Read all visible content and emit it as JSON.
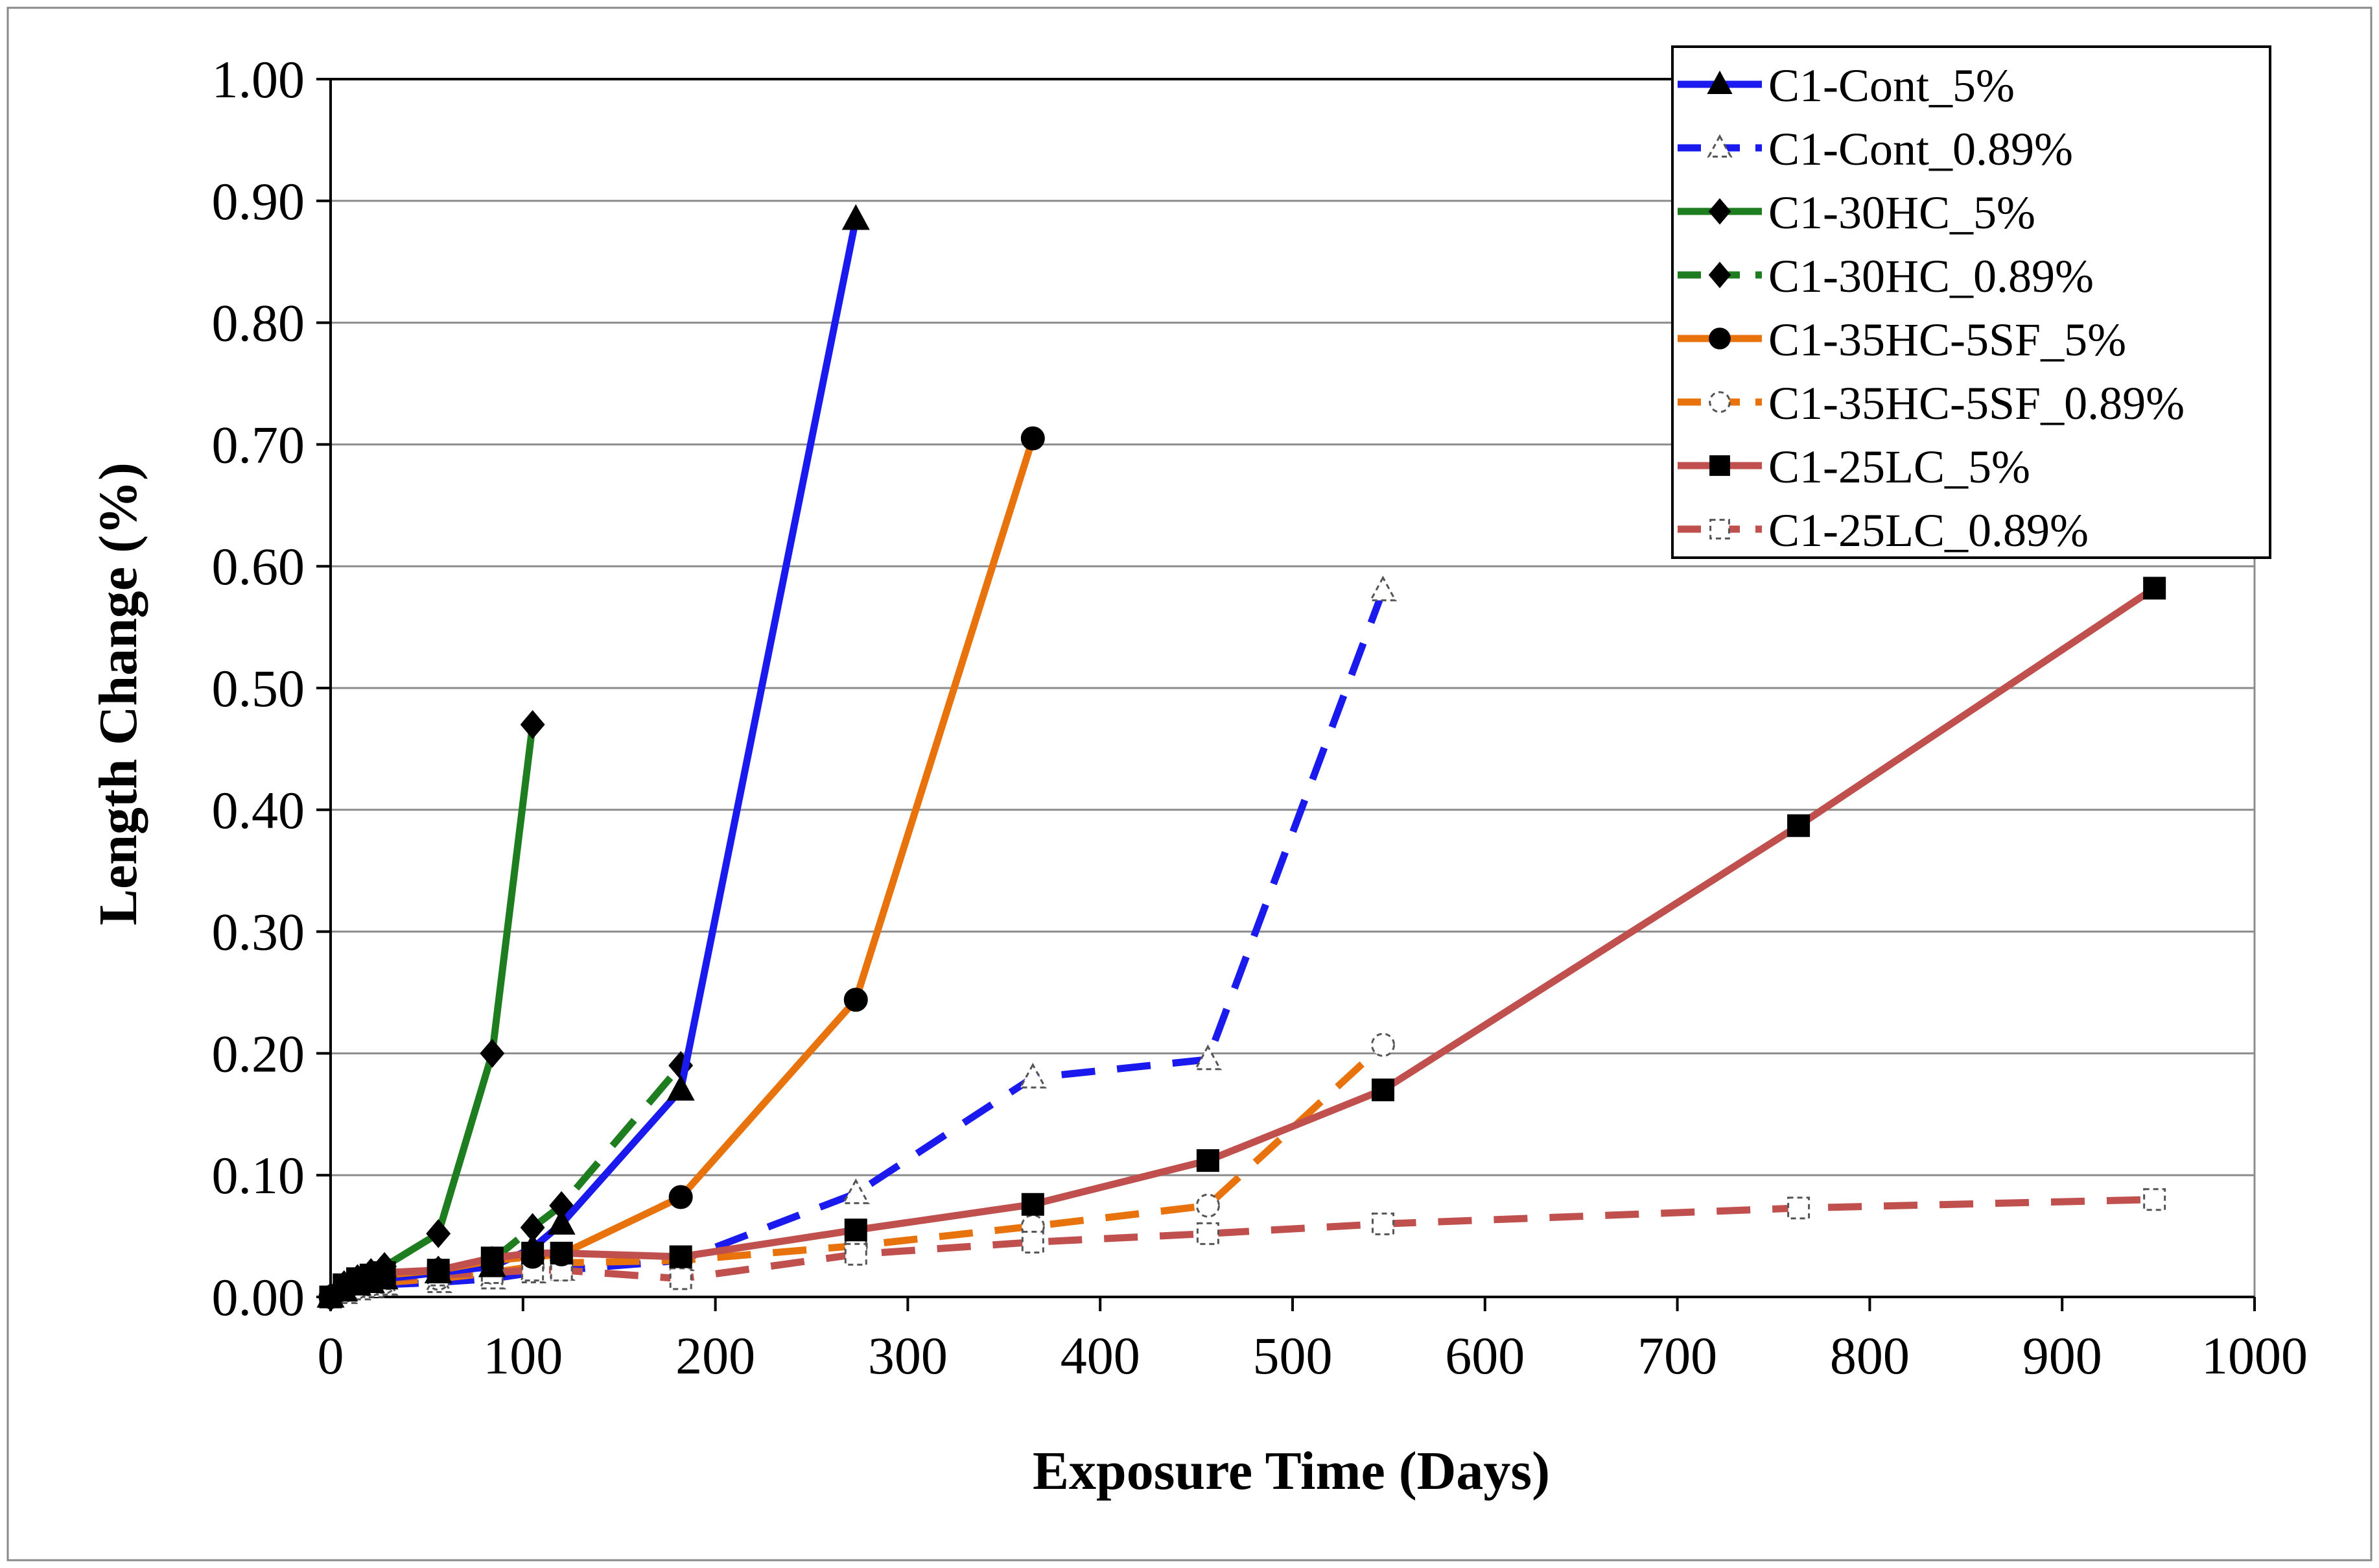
{
  "chart_data": {
    "type": "line",
    "title": "",
    "xlabel": "Exposure Time (Days)",
    "ylabel": "Length Change (%)",
    "xlim": [
      0,
      1000
    ],
    "ylim": [
      0,
      1.0
    ],
    "xticks": [
      0,
      100,
      200,
      300,
      400,
      500,
      600,
      700,
      800,
      900,
      1000
    ],
    "xtick_labels": [
      "0",
      "100",
      "200",
      "300",
      "400",
      "500",
      "600",
      "700",
      "800",
      "900",
      "1000"
    ],
    "yticks": [
      0,
      0.1,
      0.2,
      0.3,
      0.4,
      0.5,
      0.6,
      0.7,
      0.8,
      0.9,
      1.0
    ],
    "ytick_labels": [
      "0.00",
      "0.10",
      "0.20",
      "0.30",
      "0.40",
      "0.50",
      "0.60",
      "0.70",
      "0.80",
      "0.90",
      "1.00"
    ],
    "grid": "horizontal",
    "legend_position": "top-right",
    "series": [
      {
        "name": "C1-Cont_5%",
        "color": "#1a1aee",
        "dash": false,
        "marker": "triangle",
        "filled": true,
        "x": [
          0,
          7,
          14,
          21,
          28,
          56,
          84,
          105,
          120,
          182,
          273
        ],
        "y": [
          0.0,
          0.005,
          0.01,
          0.012,
          0.015,
          0.02,
          0.025,
          0.04,
          0.06,
          0.17,
          0.885
        ]
      },
      {
        "name": "C1-Cont_0.89%",
        "color": "#1a1aee",
        "dash": true,
        "marker": "triangle",
        "filled": false,
        "x": [
          0,
          7,
          14,
          21,
          28,
          56,
          84,
          105,
          120,
          182,
          273,
          365,
          456,
          547
        ],
        "y": [
          0.0,
          0.003,
          0.006,
          0.008,
          0.01,
          0.012,
          0.015,
          0.02,
          0.022,
          0.03,
          0.085,
          0.18,
          0.195,
          0.58
        ]
      },
      {
        "name": "C1-30HC_5%",
        "color": "#1e7d1e",
        "dash": false,
        "marker": "diamond",
        "filled": true,
        "x": [
          0,
          7,
          14,
          21,
          28,
          56,
          84,
          105
        ],
        "y": [
          0.0,
          0.01,
          0.015,
          0.02,
          0.025,
          0.052,
          0.2,
          0.47
        ]
      },
      {
        "name": "C1-30HC_0.89%",
        "color": "#1e7d1e",
        "dash": true,
        "marker": "diamond",
        "filled": true,
        "x": [
          0,
          7,
          14,
          21,
          28,
          56,
          84,
          105,
          120,
          182
        ],
        "y": [
          0.0,
          0.008,
          0.012,
          0.015,
          0.018,
          0.022,
          0.03,
          0.057,
          0.075,
          0.19
        ]
      },
      {
        "name": "C1-35HC-5SF_5%",
        "color": "#e8720c",
        "dash": false,
        "marker": "circle",
        "filled": true,
        "x": [
          0,
          7,
          14,
          21,
          28,
          56,
          84,
          105,
          120,
          182,
          273,
          365
        ],
        "y": [
          0.0,
          0.008,
          0.012,
          0.015,
          0.018,
          0.022,
          0.03,
          0.033,
          0.035,
          0.082,
          0.244,
          0.705
        ]
      },
      {
        "name": "C1-35HC-5SF_0.89%",
        "color": "#e8720c",
        "dash": true,
        "marker": "circle",
        "filled": false,
        "x": [
          0,
          7,
          14,
          21,
          28,
          56,
          84,
          105,
          120,
          182,
          273,
          365,
          456,
          547
        ],
        "y": [
          0.0,
          0.005,
          0.008,
          0.01,
          0.012,
          0.015,
          0.02,
          0.025,
          0.028,
          0.03,
          0.042,
          0.058,
          0.075,
          0.207
        ]
      },
      {
        "name": "C1-25LC_5%",
        "color": "#c0504d",
        "dash": false,
        "marker": "square",
        "filled": true,
        "x": [
          0,
          7,
          14,
          21,
          28,
          56,
          84,
          105,
          120,
          182,
          273,
          365,
          456,
          547,
          763,
          948
        ],
        "y": [
          0.0,
          0.01,
          0.015,
          0.018,
          0.02,
          0.022,
          0.032,
          0.036,
          0.036,
          0.033,
          0.055,
          0.076,
          0.112,
          0.17,
          0.387,
          0.582
        ]
      },
      {
        "name": "C1-25LC_0.89%",
        "color": "#c0504d",
        "dash": true,
        "marker": "square",
        "filled": false,
        "x": [
          0,
          7,
          14,
          21,
          28,
          56,
          84,
          105,
          120,
          182,
          273,
          365,
          456,
          547,
          763,
          948
        ],
        "y": [
          0.0,
          0.008,
          0.012,
          0.014,
          0.015,
          0.018,
          0.02,
          0.022,
          0.022,
          0.015,
          0.035,
          0.045,
          0.052,
          0.06,
          0.073,
          0.08
        ]
      }
    ]
  }
}
